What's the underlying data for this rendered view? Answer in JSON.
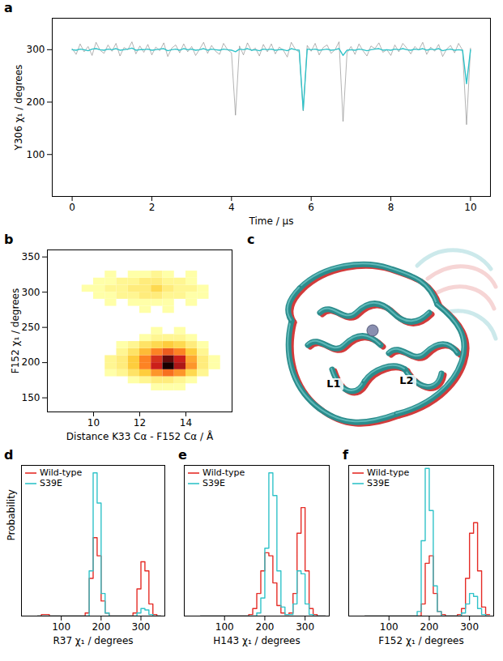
{
  "chart_data": [
    {
      "panel": "a",
      "type": "line",
      "x": [
        0,
        0.1,
        0.2,
        0.3,
        0.4,
        0.5,
        0.6,
        0.7,
        0.8,
        0.9,
        1,
        1.1,
        1.2,
        1.3,
        1.4,
        1.5,
        1.6,
        1.7,
        1.8,
        1.9,
        2,
        2.1,
        2.2,
        2.3,
        2.4,
        2.5,
        2.6,
        2.7,
        2.8,
        2.9,
        3,
        3.1,
        3.2,
        3.3,
        3.4,
        3.5,
        3.6,
        3.7,
        3.8,
        3.9,
        4,
        4.1,
        4.2,
        4.3,
        4.4,
        4.5,
        4.6,
        4.7,
        4.8,
        4.9,
        5,
        5.1,
        5.2,
        5.3,
        5.4,
        5.5,
        5.6,
        5.7,
        5.8,
        5.9,
        6,
        6.1,
        6.2,
        6.3,
        6.4,
        6.5,
        6.6,
        6.7,
        6.8,
        6.9,
        7,
        7.1,
        7.2,
        7.3,
        7.4,
        7.5,
        7.6,
        7.7,
        7.8,
        7.9,
        8,
        8.1,
        8.2,
        8.3,
        8.4,
        8.5,
        8.6,
        8.7,
        8.8,
        8.9,
        9,
        9.1,
        9.2,
        9.3,
        9.4,
        9.5,
        9.6,
        9.7,
        9.8,
        9.9,
        10
      ],
      "series": [
        {
          "color": "#7f7f7f",
          "values": [
            302,
            291,
            311,
            296,
            306,
            289,
            314,
            299,
            293,
            309,
            297,
            312,
            288,
            304,
            300,
            315,
            292,
            307,
            295,
            310,
            290,
            305,
            298,
            313,
            287,
            303,
            309,
            294,
            311,
            296,
            306,
            289,
            301,
            314,
            293,
            308,
            297,
            291,
            312,
            300,
            294,
            175,
            307,
            290,
            313,
            298,
            303,
            288,
            310,
            296,
            311,
            292,
            305,
            299,
            286,
            314,
            301,
            295,
            183,
            308,
            297,
            312,
            290,
            304,
            309,
            293,
            300,
            315,
            163,
            294,
            306,
            291,
            311,
            298,
            288,
            307,
            302,
            313,
            295,
            300,
            289,
            309,
            296,
            312,
            303,
            292,
            306,
            299,
            314,
            291,
            305,
            297,
            310,
            287,
            301,
            308,
            294,
            312,
            299,
            157,
            303
          ]
        },
        {
          "color": "#31c3c9",
          "values": [
            300,
            299,
            301,
            300,
            298,
            301,
            302,
            300,
            299,
            301,
            300,
            302,
            299,
            300,
            301,
            303,
            299,
            300,
            300,
            301,
            299,
            300,
            301,
            302,
            298,
            300,
            301,
            299,
            302,
            300,
            301,
            299,
            300,
            302,
            299,
            301,
            300,
            299,
            301,
            300,
            299,
            296,
            301,
            300,
            302,
            299,
            300,
            298,
            301,
            300,
            301,
            299,
            300,
            300,
            298,
            302,
            300,
            299,
            185,
            301,
            300,
            301,
            299,
            300,
            301,
            299,
            300,
            302,
            289,
            299,
            300,
            299,
            301,
            300,
            298,
            300,
            301,
            302,
            299,
            300,
            299,
            301,
            300,
            302,
            300,
            299,
            301,
            300,
            302,
            299,
            301,
            300,
            302,
            298,
            300,
            301,
            299,
            300,
            299,
            235,
            300
          ]
        }
      ],
      "xlim": [
        -0.5,
        10.5
      ],
      "ylim": [
        20,
        360
      ],
      "xticks": [
        0,
        2,
        4,
        6,
        8,
        10
      ],
      "yticks": [
        100,
        200,
        300
      ],
      "x_label": "Time / µs",
      "y_label": "Y306 χ₁ / degrees"
    },
    {
      "panel": "b",
      "type": "heatmap",
      "xbins": [
        9.5,
        10,
        10.5,
        11,
        11.5,
        12,
        12.5,
        13,
        13.5,
        14,
        14.5,
        15,
        15.5
      ],
      "ybins": [
        160,
        170,
        180,
        190,
        200,
        210,
        220,
        230,
        240,
        250,
        260,
        270,
        280,
        290,
        300,
        310,
        320,
        330
      ],
      "counts": [
        [
          0,
          0,
          0,
          0,
          0,
          0,
          1,
          1,
          1,
          0,
          0,
          0
        ],
        [
          0,
          0,
          0,
          0,
          1,
          2,
          3,
          3,
          2,
          1,
          0,
          0
        ],
        [
          0,
          0,
          1,
          2,
          4,
          6,
          9,
          11,
          9,
          5,
          2,
          0
        ],
        [
          0,
          0,
          2,
          3,
          6,
          10,
          15,
          20,
          16,
          9,
          3,
          1
        ],
        [
          0,
          0,
          2,
          3,
          6,
          10,
          14,
          18,
          15,
          8,
          3,
          1
        ],
        [
          0,
          0,
          0,
          2,
          4,
          7,
          10,
          12,
          10,
          6,
          2,
          0
        ],
        [
          0,
          0,
          0,
          1,
          2,
          4,
          5,
          6,
          5,
          3,
          1,
          0
        ],
        [
          0,
          0,
          0,
          0,
          0,
          1,
          2,
          2,
          2,
          1,
          0,
          0
        ],
        [
          0,
          0,
          0,
          0,
          0,
          0,
          1,
          0,
          1,
          0,
          0,
          0
        ],
        [
          0,
          0,
          0,
          0,
          0,
          0,
          0,
          0,
          0,
          0,
          0,
          0
        ],
        [
          0,
          0,
          0,
          0,
          0,
          0,
          0,
          0,
          0,
          0,
          0,
          0
        ],
        [
          0,
          0,
          0,
          0,
          0,
          1,
          0,
          1,
          0,
          0,
          0,
          0
        ],
        [
          0,
          0,
          1,
          0,
          1,
          1,
          1,
          1,
          0,
          1,
          0,
          0
        ],
        [
          0,
          1,
          1,
          2,
          2,
          3,
          3,
          2,
          2,
          1,
          1,
          0
        ],
        [
          1,
          1,
          2,
          2,
          3,
          3,
          5,
          3,
          2,
          2,
          1,
          0
        ],
        [
          0,
          1,
          1,
          2,
          2,
          3,
          3,
          2,
          2,
          1,
          0,
          0
        ],
        [
          0,
          0,
          1,
          0,
          1,
          1,
          2,
          1,
          0,
          1,
          0,
          0
        ]
      ],
      "xlim": [
        8,
        16
      ],
      "ylim": [
        130,
        360
      ],
      "xticks": [
        10,
        12,
        14
      ],
      "yticks": [
        150,
        200,
        250,
        300,
        350
      ],
      "x_label": "Distance K33 Cα - F152 Cα / Å",
      "y_label": "F152 χ₁ / degrees"
    },
    {
      "panel": "c",
      "type": "image",
      "annotations": [
        "L1",
        "L2"
      ]
    },
    {
      "panel": "d",
      "type": "histogram",
      "bins": [
        40,
        50,
        60,
        70,
        80,
        90,
        100,
        110,
        120,
        130,
        140,
        150,
        160,
        170,
        180,
        190,
        200,
        210,
        220,
        230,
        240,
        250,
        260,
        270,
        280,
        290,
        300,
        310,
        320,
        330,
        340,
        350
      ],
      "series": [
        {
          "name": "Wild-type",
          "color": "#e52d27",
          "values": [
            0,
            0.01,
            0.01,
            0,
            0,
            0,
            0,
            0,
            0,
            0,
            0,
            0,
            0.02,
            0.25,
            0.52,
            0.4,
            0.1,
            0.02,
            0,
            0,
            0,
            0,
            0,
            0,
            0.02,
            0.18,
            0.36,
            0.3,
            0.08,
            0.01,
            0
          ]
        },
        {
          "name": "S39E",
          "color": "#31c3c9",
          "values": [
            0,
            0,
            0,
            0,
            0,
            0,
            0,
            0,
            0,
            0,
            0,
            0,
            0,
            0.3,
            0.95,
            0.75,
            0.15,
            0.02,
            0,
            0,
            0,
            0,
            0,
            0,
            0,
            0.02,
            0.05,
            0.04,
            0.01,
            0,
            0
          ]
        }
      ],
      "xlim": [
        0,
        360
      ],
      "ylim": [
        0,
        1
      ],
      "xticks": [
        100,
        200,
        300
      ],
      "x_label": "R37 χ₁ / degrees",
      "y_label": "Probability",
      "legend": "top-left",
      "tick_labels": "x"
    },
    {
      "panel": "e",
      "type": "histogram",
      "bins": [
        40,
        50,
        60,
        70,
        80,
        90,
        100,
        110,
        120,
        130,
        140,
        150,
        160,
        170,
        180,
        190,
        200,
        210,
        220,
        230,
        240,
        250,
        260,
        270,
        280,
        290,
        300,
        310,
        320,
        330,
        340,
        350
      ],
      "series": [
        {
          "name": "Wild-type",
          "color": "#e52d27",
          "values": [
            0,
            0,
            0,
            0,
            0,
            0,
            0,
            0,
            0,
            0,
            0,
            0,
            0.01,
            0.05,
            0.15,
            0.3,
            0.42,
            0.4,
            0.22,
            0.07,
            0.02,
            0.01,
            0.02,
            0.15,
            0.55,
            0.72,
            0.3,
            0.05,
            0.01,
            0,
            0
          ]
        },
        {
          "name": "S39E",
          "color": "#31c3c9",
          "values": [
            0,
            0,
            0,
            0,
            0,
            0,
            0,
            0,
            0,
            0,
            0,
            0,
            0,
            0,
            0.02,
            0.12,
            0.45,
            0.95,
            0.8,
            0.3,
            0.06,
            0.01,
            0.01,
            0.08,
            0.3,
            0.28,
            0.08,
            0.01,
            0,
            0,
            0
          ]
        }
      ],
      "xlim": [
        0,
        360
      ],
      "ylim": [
        0,
        1
      ],
      "xticks": [
        100,
        200,
        300
      ],
      "x_label": "H143 χ₁ / degrees",
      "legend": "top-left",
      "tick_labels": "x"
    },
    {
      "panel": "f",
      "type": "histogram",
      "bins": [
        40,
        50,
        60,
        70,
        80,
        90,
        100,
        110,
        120,
        130,
        140,
        150,
        160,
        170,
        180,
        190,
        200,
        210,
        220,
        230,
        240,
        250,
        260,
        270,
        280,
        290,
        300,
        310,
        320,
        330,
        340,
        350
      ],
      "series": [
        {
          "name": "Wild-type",
          "color": "#e52d27",
          "values": [
            0,
            0,
            0,
            0,
            0,
            0,
            0,
            0,
            0,
            0,
            0,
            0,
            0,
            0,
            0.08,
            0.35,
            0.4,
            0.15,
            0.03,
            0.01,
            0,
            0,
            0,
            0.01,
            0.05,
            0.25,
            0.55,
            0.62,
            0.3,
            0.06,
            0.01
          ]
        },
        {
          "name": "S39E",
          "color": "#31c3c9",
          "values": [
            0,
            0,
            0,
            0,
            0,
            0,
            0,
            0,
            0,
            0,
            0,
            0,
            0,
            0.03,
            0.5,
            0.98,
            0.7,
            0.2,
            0.03,
            0,
            0,
            0,
            0,
            0,
            0.02,
            0.08,
            0.15,
            0.13,
            0.05,
            0.01,
            0
          ]
        }
      ],
      "xlim": [
        0,
        360
      ],
      "ylim": [
        0,
        1
      ],
      "xticks": [
        100,
        200,
        300
      ],
      "x_label": "F152 χ₁ / degrees",
      "legend": "top-left",
      "tick_labels": "x"
    }
  ]
}
